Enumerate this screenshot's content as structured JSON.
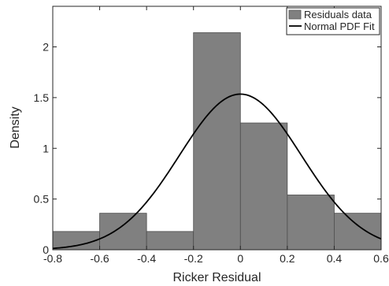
{
  "chart_data": {
    "type": "bar",
    "title": "",
    "xlabel": "Ricker Residual",
    "ylabel": "Density",
    "xlim": [
      -0.8,
      0.6
    ],
    "ylim": [
      0,
      2.4
    ],
    "grid": false,
    "legend_position": "top-right",
    "x_ticks": [
      "-0.8",
      "-0.6",
      "-0.4",
      "-0.2",
      "0",
      "0.2",
      "0.4",
      "0.6"
    ],
    "y_ticks": [
      "0",
      "0.5",
      "1",
      "1.5",
      "2"
    ],
    "bins": [
      {
        "from": -0.8,
        "to": -0.6,
        "density": 0.18
      },
      {
        "from": -0.6,
        "to": -0.4,
        "density": 0.36
      },
      {
        "from": -0.4,
        "to": -0.2,
        "density": 0.18
      },
      {
        "from": -0.2,
        "to": 0.0,
        "density": 2.14
      },
      {
        "from": 0.0,
        "to": 0.2,
        "density": 1.25
      },
      {
        "from": 0.2,
        "to": 0.4,
        "density": 0.54
      },
      {
        "from": 0.4,
        "to": 0.6,
        "density": 0.36
      }
    ],
    "series": [
      {
        "name": "Residuals data",
        "type": "histogram",
        "color": "#808080"
      },
      {
        "name": "Normal PDF Fit",
        "type": "line",
        "color": "#000000",
        "mean": 0.0,
        "std": 0.26
      }
    ]
  }
}
